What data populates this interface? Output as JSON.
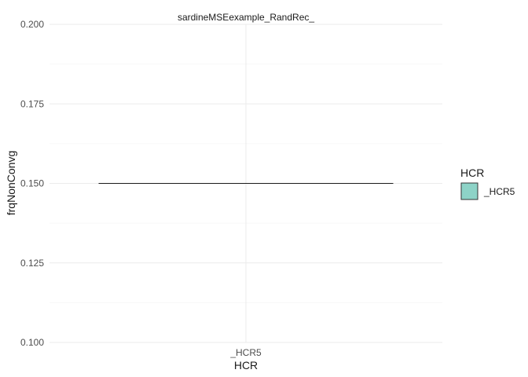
{
  "chart_data": {
    "type": "boxplot",
    "title": "sardineMSEexample_RandRec_",
    "xlabel": "HCR",
    "ylabel": "frqNonConvg",
    "categories": [
      "_HCR5"
    ],
    "values": [
      0.15
    ],
    "ylim": [
      0.1,
      0.2
    ],
    "yticks": [
      0.1,
      0.125,
      0.15,
      0.175,
      0.2
    ],
    "ytick_labels": [
      "0.100",
      "0.125",
      "0.150",
      "0.175",
      "0.200"
    ],
    "grid": true,
    "legend": {
      "title": "HCR",
      "position": "right",
      "entries": [
        {
          "label": "_HCR5",
          "color": "#8dd3c7"
        }
      ]
    }
  }
}
